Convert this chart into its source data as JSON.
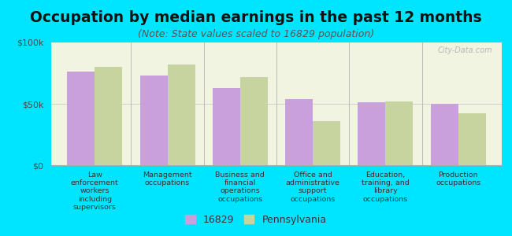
{
  "title": "Occupation by median earnings in the past 12 months",
  "subtitle": "(Note: State values scaled to 16829 population)",
  "categories": [
    "Law\nenforcement\nworkers\nincluding\nsupervisors",
    "Management\noccupations",
    "Business and\nfinancial\noperations\noccupations",
    "Office and\nadministrative\nsupport\noccupations",
    "Education,\ntraining, and\nlibrary\noccupations",
    "Production\noccupations"
  ],
  "values_16829": [
    76000,
    73000,
    63000,
    54000,
    51000,
    50000
  ],
  "values_pa": [
    80000,
    82000,
    72000,
    36000,
    52000,
    42000
  ],
  "color_16829": "#c9a0dc",
  "color_pa": "#c8d4a0",
  "legend_labels": [
    "16829",
    "Pennsylvania"
  ],
  "ylim": [
    0,
    100000
  ],
  "yticks": [
    0,
    50000,
    100000
  ],
  "ytick_labels": [
    "$0",
    "$50k",
    "$100k"
  ],
  "background_color": "#00e5ff",
  "plot_bg_top": "#f0f4e0",
  "plot_bg_bottom": "#e8f0d8",
  "watermark": "City-Data.com",
  "bar_width": 0.38,
  "title_fontsize": 13.5,
  "subtitle_fontsize": 9,
  "tick_fontsize": 8,
  "legend_fontsize": 9
}
